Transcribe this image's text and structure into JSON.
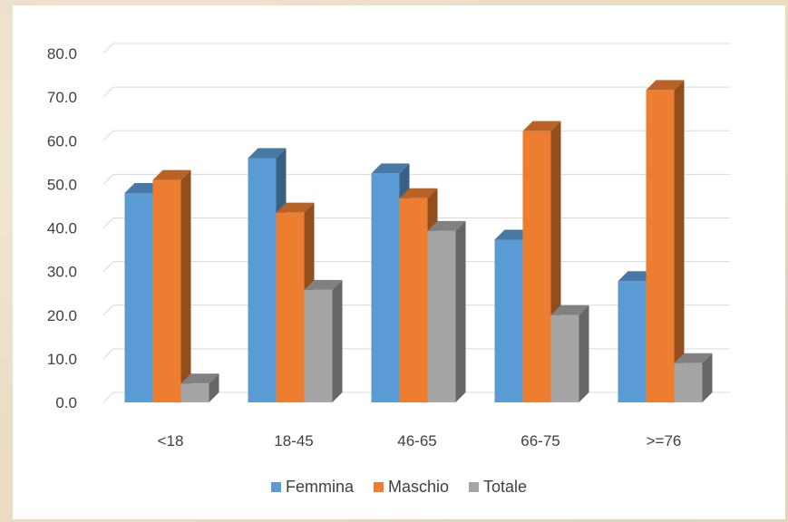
{
  "chart_data": {
    "type": "bar",
    "style": "3d-clustered-column",
    "categories": [
      "<18",
      "18-45",
      "46-65",
      "66-75",
      ">=76"
    ],
    "series": [
      {
        "name": "Femmina",
        "values": [
          48.0,
          56.0,
          52.5,
          37.3,
          27.8
        ],
        "color": "#5b9bd5"
      },
      {
        "name": "Maschio",
        "values": [
          51.0,
          43.5,
          46.8,
          62.2,
          71.6
        ],
        "color": "#ed7d31"
      },
      {
        "name": "Totale",
        "values": [
          4.3,
          25.8,
          39.3,
          20.0,
          9.0
        ],
        "color": "#a5a5a5"
      }
    ],
    "y_ticks": [
      "0.0",
      "10.0",
      "20.0",
      "30.0",
      "40.0",
      "50.0",
      "60.0",
      "70.0",
      "80.0"
    ],
    "ylim": [
      0,
      80
    ],
    "grid": true,
    "legend_position": "bottom",
    "title": "",
    "xlabel": "",
    "ylabel": ""
  }
}
